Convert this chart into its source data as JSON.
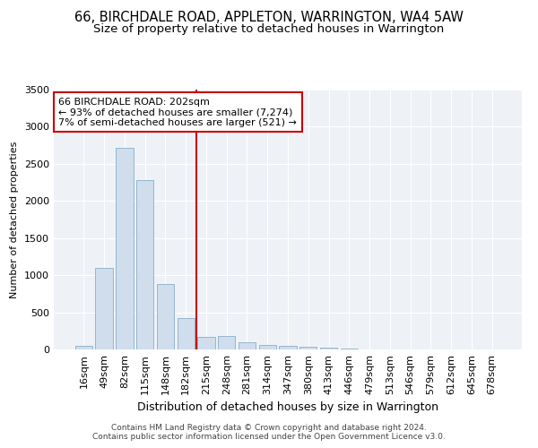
{
  "title": "66, BIRCHDALE ROAD, APPLETON, WARRINGTON, WA4 5AW",
  "subtitle": "Size of property relative to detached houses in Warrington",
  "xlabel": "Distribution of detached houses by size in Warrington",
  "ylabel": "Number of detached properties",
  "categories": [
    "16sqm",
    "49sqm",
    "82sqm",
    "115sqm",
    "148sqm",
    "182sqm",
    "215sqm",
    "248sqm",
    "281sqm",
    "314sqm",
    "347sqm",
    "380sqm",
    "413sqm",
    "446sqm",
    "479sqm",
    "513sqm",
    "546sqm",
    "579sqm",
    "612sqm",
    "645sqm",
    "678sqm"
  ],
  "values": [
    50,
    1100,
    2720,
    2280,
    880,
    420,
    175,
    185,
    95,
    60,
    50,
    35,
    25,
    10,
    4,
    3,
    2,
    1,
    1,
    1,
    1
  ],
  "bar_color": "#cfdded",
  "bar_edgecolor": "#8aaec8",
  "vline_color": "#cc0000",
  "vline_position": 6,
  "annotation_line1": "66 BIRCHDALE ROAD: 202sqm",
  "annotation_line2": "← 93% of detached houses are smaller (7,274)",
  "annotation_line3": "7% of semi-detached houses are larger (521) →",
  "annotation_box_edgecolor": "#cc0000",
  "ylim": [
    0,
    3500
  ],
  "yticks": [
    0,
    500,
    1000,
    1500,
    2000,
    2500,
    3000,
    3500
  ],
  "bg_color": "#eef2f7",
  "footer_line1": "Contains HM Land Registry data © Crown copyright and database right 2024.",
  "footer_line2": "Contains public sector information licensed under the Open Government Licence v3.0.",
  "title_fontsize": 10.5,
  "subtitle_fontsize": 9.5,
  "xlabel_fontsize": 9,
  "ylabel_fontsize": 8,
  "tick_fontsize": 8,
  "annot_fontsize": 8,
  "footer_fontsize": 6.5
}
